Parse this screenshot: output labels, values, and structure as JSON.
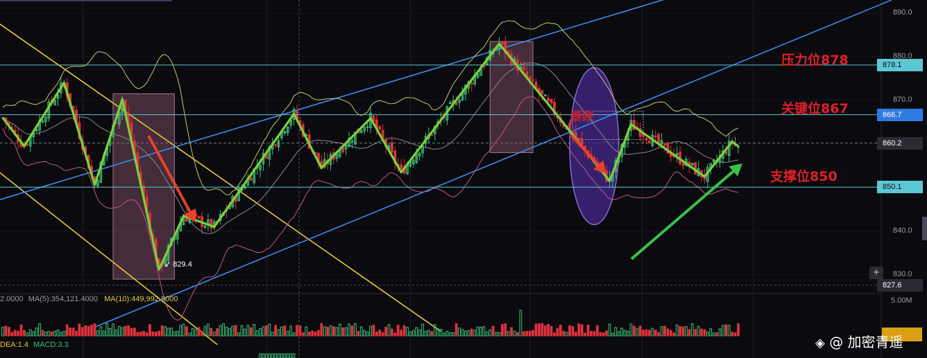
{
  "chart_data": {
    "type": "candlestick",
    "ylim": [
      826,
      893
    ],
    "y_ticks": [
      {
        "value": 890,
        "label": "890.0"
      },
      {
        "value": 880,
        "label": "880.0"
      },
      {
        "value": 870,
        "label": "870.0"
      },
      {
        "value": 840,
        "label": "840.0"
      },
      {
        "value": 830,
        "label": "830.0"
      }
    ],
    "price_labels": [
      {
        "value": 878.1,
        "label": "878.1",
        "bg": "#5cc8d4",
        "fg": "#0b0b0f"
      },
      {
        "value": 866.7,
        "label": "866.7",
        "bg": "#2f7ae0",
        "fg": "#ffffff"
      },
      {
        "value": 860.2,
        "label": "860.2",
        "bg": "#2b2b34",
        "fg": "#ffffff"
      },
      {
        "value": 850.1,
        "label": "850.1",
        "bg": "#5cc8d4",
        "fg": "#0b0b0f"
      },
      {
        "value": 827.6,
        "label": "827.6",
        "bg": "#2b2b34",
        "fg": "#ffffff"
      }
    ],
    "levels": [
      {
        "name": "压力位878",
        "value": 878.1
      },
      {
        "name": "关键位867",
        "value": 866.7
      },
      {
        "name": "支撑位850",
        "value": 850.1
      }
    ],
    "low_marker": {
      "label": "829.4",
      "value": 829.4
    },
    "crash_label": "暴跌",
    "zigzag": [
      [
        0,
        866.0
      ],
      [
        7,
        859.5
      ],
      [
        20,
        874.0
      ],
      [
        30,
        850.6
      ],
      [
        39,
        870.3
      ],
      [
        51,
        831.2
      ],
      [
        59,
        843.5
      ],
      [
        69,
        841.0
      ],
      [
        95,
        866.9
      ],
      [
        104,
        854.5
      ],
      [
        120,
        865.9
      ],
      [
        130,
        853.5
      ],
      [
        162,
        883.0
      ],
      [
        181,
        866.5
      ],
      [
        198,
        851.5
      ],
      [
        205,
        864.5
      ],
      [
        229,
        852.5
      ],
      [
        238,
        860.5
      ],
      [
        240,
        859.5
      ]
    ],
    "x_count": 241,
    "volume_scale": "5.00M",
    "indicators": {
      "volume": [
        "2.0000",
        "MA(5):354,121.4000",
        "MA(10):449,992.8000"
      ],
      "macd": [
        "DEA:1.4",
        "MACD:3.3"
      ]
    },
    "colors": {
      "up": "#3ec27a",
      "down": "#e0323c",
      "zigzag": "#7bd23a",
      "channel": "#3c8cf0",
      "descending": "#e9c83a",
      "boll": "#c8c86a",
      "boll_lower": "#c05a8a",
      "level_line": "#5cc8d4"
    }
  },
  "watermark": "@ 加密青遥"
}
